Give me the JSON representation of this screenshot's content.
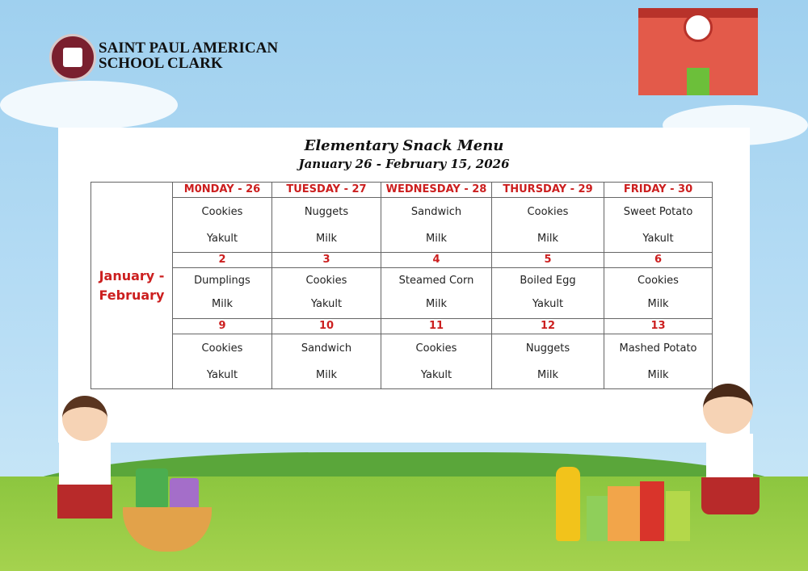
{
  "school": {
    "line1": "SAINT PAUL AMERICAN",
    "line2": "SCHOOL CLARK"
  },
  "menu": {
    "title": "Elementary Snack Menu",
    "dates": "January 26 - February 15, 2026",
    "side_label": "January - February",
    "weeks": [
      {
        "days": [
          "M0NDAY - 26",
          "TUESDAY - 27",
          "WEDNESDAY - 28",
          "THURSDAY - 29",
          "FRIDAY - 30"
        ],
        "items": [
          [
            "Cookies",
            "Yakult"
          ],
          [
            "Nuggets",
            "Milk"
          ],
          [
            "Sandwich",
            "Milk"
          ],
          [
            "Cookies",
            "Milk"
          ],
          [
            "Sweet Potato",
            "Yakult"
          ]
        ]
      },
      {
        "days": [
          "2",
          "3",
          "4",
          "5",
          "6"
        ],
        "items": [
          [
            "Dumplings",
            "Milk"
          ],
          [
            "Cookies",
            "Yakult"
          ],
          [
            "Steamed Corn",
            "Milk"
          ],
          [
            "Boiled Egg",
            "Yakult"
          ],
          [
            "Cookies",
            "Milk"
          ]
        ]
      },
      {
        "days": [
          "9",
          "10",
          "11",
          "12",
          "13"
        ],
        "items": [
          [
            "Cookies",
            "Yakult"
          ],
          [
            "Sandwich",
            "Milk"
          ],
          [
            "Cookies",
            "Yakult"
          ],
          [
            "Nuggets",
            "Milk"
          ],
          [
            "Mashed Potato",
            "Milk"
          ]
        ]
      }
    ]
  },
  "colors": {
    "accent": "#cc1f1f",
    "logo": "#7a1f2e"
  }
}
